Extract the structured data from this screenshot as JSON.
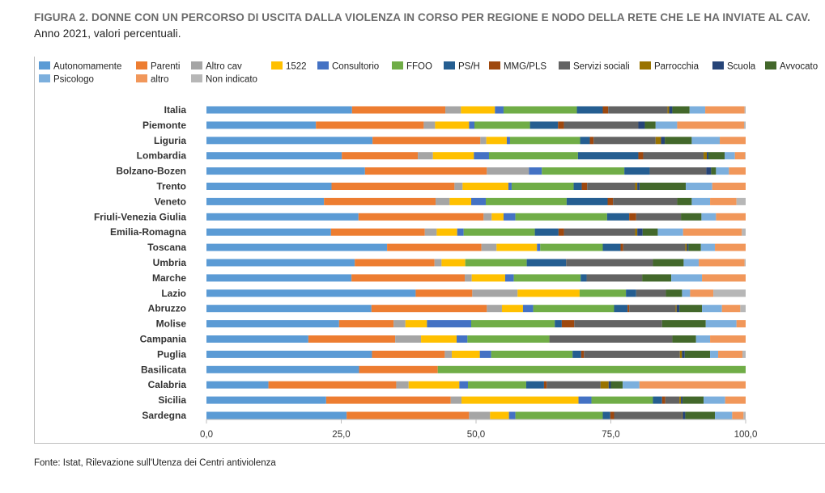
{
  "title_bold": "FIGURA 2. DONNE CON UN PERCORSO DI USCITA DALLA VIOLENZA IN CORSO PER REGIONE E NODO DELLA RETE CHE LE HA INVIATE AL CAV.",
  "title_normal": " Anno 2021, valori percentuali.",
  "source": "Fonte: Istat, Rilevazione sull'Utenza dei Centri antiviolenza",
  "chart_data": {
    "type": "bar",
    "orientation": "horizontal",
    "stacked": true,
    "xlim": [
      0,
      100
    ],
    "xticks": [
      "0,0",
      "25,0",
      "50,0",
      "75,0",
      "100,0"
    ],
    "grid": false,
    "legend_position": "top",
    "categories": [
      "Italia",
      "Piemonte",
      "Liguria",
      "Lombardia",
      "Bolzano-Bozen",
      "Trento",
      "Veneto",
      "Friuli-Venezia Giulia",
      "Emilia-Romagna",
      "Toscana",
      "Umbria",
      "Marche",
      "Lazio",
      "Abruzzo",
      "Molise",
      "Campania",
      "Puglia",
      "Basilicata",
      "Calabria",
      "Sicilia",
      "Sardegna"
    ],
    "series": [
      {
        "name": "Autonomamente",
        "color": "#5b9bd5",
        "values": [
          27,
          20.3,
          30.8,
          25.1,
          29.4,
          23.2,
          21.8,
          28.2,
          23.1,
          33.5,
          27.5,
          26.9,
          38.8,
          30.6,
          24.6,
          18.9,
          30.7,
          28.3,
          11.5,
          22.2,
          26
        ]
      },
      {
        "name": "Parenti",
        "color": "#ed7d31",
        "values": [
          17.3,
          20,
          20,
          14.1,
          22.6,
          22.8,
          20.7,
          23.2,
          17.4,
          17.5,
          14.8,
          21,
          10.5,
          21.4,
          10.1,
          16.1,
          13.5,
          14.6,
          23.7,
          23.1,
          22.7
        ]
      },
      {
        "name": "Altro cav",
        "color": "#a5a5a5",
        "values": [
          2.9,
          2.1,
          1.1,
          2.8,
          7.8,
          1.5,
          2.6,
          1.5,
          2.2,
          2.8,
          1.3,
          1.3,
          8.4,
          2.8,
          2.2,
          4.8,
          1.3,
          0,
          2.3,
          2,
          3.9
        ]
      },
      {
        "name": "1522",
        "color": "#ffc000",
        "values": [
          6.3,
          6.3,
          3.8,
          7.6,
          0,
          8.5,
          4,
          2.2,
          3.8,
          7.5,
          4.4,
          6.2,
          11.5,
          3.9,
          4,
          6.6,
          5.2,
          0,
          9.4,
          21.7,
          3.5
        ]
      },
      {
        "name": "Consultorio",
        "color": "#4472c4",
        "values": [
          1.6,
          1,
          0.6,
          2.8,
          2.4,
          0.6,
          2.7,
          2.2,
          1.2,
          0.6,
          0,
          1.6,
          0,
          1.9,
          8.2,
          2,
          2.1,
          0,
          1.6,
          2.4,
          1.2
        ]
      },
      {
        "name": "FFOO",
        "color": "#70ad47",
        "values": [
          13.6,
          10.3,
          13,
          16.5,
          15.3,
          11.5,
          15,
          17,
          13.2,
          11.6,
          11.4,
          12.4,
          8.6,
          15,
          15.5,
          15.2,
          15.1,
          57.1,
          10.8,
          11.4,
          16.2
        ]
      },
      {
        "name": "PS/H",
        "color": "#255e91",
        "values": [
          4.8,
          5.2,
          1.8,
          11.2,
          4.7,
          1.5,
          7.6,
          4.1,
          4.4,
          3.3,
          7.3,
          1.1,
          1.9,
          2.5,
          1.3,
          0,
          1.6,
          0,
          3.3,
          1.7,
          1.4
        ]
      },
      {
        "name": "MMG/PLS",
        "color": "#9e480e",
        "values": [
          1,
          1.1,
          0.7,
          0.9,
          0,
          1,
          1,
          1.3,
          1,
          0.5,
          0,
          0,
          0,
          0.3,
          2.3,
          0,
          0.5,
          0,
          0.5,
          0.6,
          0.7
        ]
      },
      {
        "name": "Servizi sociali",
        "color": "#636363",
        "values": [
          11,
          13.8,
          11.5,
          11.2,
          10.5,
          8.9,
          11.9,
          8.3,
          13.2,
          11.5,
          16.1,
          10.3,
          5.5,
          8.6,
          16.3,
          22.8,
          17.8,
          0,
          10,
          2.6,
          12.6
        ]
      },
      {
        "name": "Parrocchia",
        "color": "#997300",
        "values": [
          0.3,
          0,
          1,
          0.6,
          0,
          0.4,
          0,
          0,
          0.4,
          0.3,
          0,
          0,
          0,
          0.2,
          0,
          0,
          0.4,
          0,
          1.5,
          0.3,
          0.1
        ]
      },
      {
        "name": "Scuola",
        "color": "#264478",
        "values": [
          0.6,
          1.2,
          0.7,
          0.3,
          0.9,
          0.4,
          0,
          0,
          1,
          0.3,
          0,
          0,
          0,
          0.5,
          0,
          0,
          0.5,
          0,
          0.4,
          0.3,
          0.5
        ]
      },
      {
        "name": "Avvocato",
        "color": "#43682b",
        "values": [
          3.2,
          2,
          5,
          3,
          0.9,
          8.6,
          2.7,
          3.8,
          2.8,
          2.3,
          5.7,
          5.4,
          3,
          4.2,
          8.1,
          4.4,
          4.7,
          0,
          2.2,
          3.9,
          5.5
        ]
      },
      {
        "name": "Psicologo",
        "color": "#7cafdd",
        "values": [
          2.9,
          4,
          5.2,
          1.9,
          2.4,
          4.9,
          3.4,
          2.7,
          4.7,
          2.6,
          2.8,
          5.7,
          1.5,
          3.7,
          5.7,
          2.6,
          1.5,
          0,
          3.1,
          4,
          3.2
        ]
      },
      {
        "name": "altro",
        "color": "#f1975a",
        "values": [
          7.3,
          12.4,
          4.8,
          1.9,
          3.1,
          6.2,
          4.9,
          5.5,
          10.9,
          5.7,
          8.5,
          8.1,
          4.3,
          3.4,
          1.7,
          6.6,
          4.5,
          0,
          19.7,
          3.8,
          2.1
        ]
      },
      {
        "name": "Non indicato",
        "color": "#b7b7b7",
        "values": [
          0.2,
          0.3,
          0,
          0.1,
          0,
          0,
          1.7,
          0,
          0.7,
          0,
          0.2,
          0,
          6,
          1,
          0,
          0,
          0.6,
          0,
          0,
          0,
          0.4
        ]
      }
    ]
  }
}
